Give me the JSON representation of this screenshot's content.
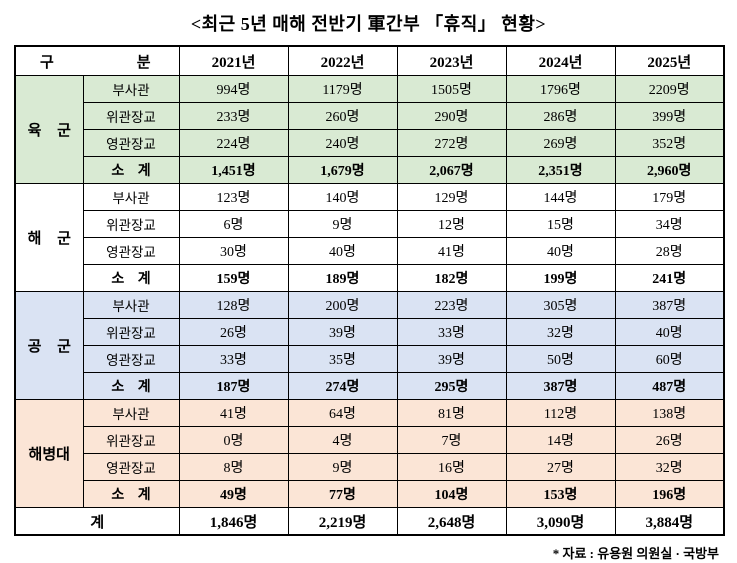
{
  "title": "<최근 5년 매해 전반기 軍간부 「휴직」 현황>",
  "footnote": "* 자료 : 유용원 의원실 · 국방부",
  "chart_data": {
    "type": "table",
    "title": "<최근 5년 매해 전반기 軍간부 「휴직」 현황>",
    "corner": {
      "left": "구",
      "right": "분"
    },
    "years": [
      "2021년",
      "2022년",
      "2023년",
      "2024년",
      "2025년"
    ],
    "groups": [
      {
        "name": "육 군",
        "color": "#d9ead3",
        "rows": [
          {
            "label": "부사관",
            "bold": false,
            "values": [
              "994명",
              "1179명",
              "1505명",
              "1796명",
              "2209명"
            ]
          },
          {
            "label": "위관장교",
            "bold": false,
            "values": [
              "233명",
              "260명",
              "290명",
              "286명",
              "399명"
            ]
          },
          {
            "label": "영관장교",
            "bold": false,
            "values": [
              "224명",
              "240명",
              "272명",
              "269명",
              "352명"
            ]
          },
          {
            "label": "소 계",
            "bold": true,
            "values": [
              "1,451명",
              "1,679명",
              "2,067명",
              "2,351명",
              "2,960명"
            ]
          }
        ]
      },
      {
        "name": "해 군",
        "color": "#ffffff",
        "rows": [
          {
            "label": "부사관",
            "bold": false,
            "values": [
              "123명",
              "140명",
              "129명",
              "144명",
              "179명"
            ]
          },
          {
            "label": "위관장교",
            "bold": false,
            "values": [
              "6명",
              "9명",
              "12명",
              "15명",
              "34명"
            ]
          },
          {
            "label": "영관장교",
            "bold": false,
            "values": [
              "30명",
              "40명",
              "41명",
              "40명",
              "28명"
            ]
          },
          {
            "label": "소 계",
            "bold": true,
            "values": [
              "159명",
              "189명",
              "182명",
              "199명",
              "241명"
            ]
          }
        ]
      },
      {
        "name": "공 군",
        "color": "#dae3f3",
        "rows": [
          {
            "label": "부사관",
            "bold": false,
            "values": [
              "128명",
              "200명",
              "223명",
              "305명",
              "387명"
            ]
          },
          {
            "label": "위관장교",
            "bold": false,
            "values": [
              "26명",
              "39명",
              "33명",
              "32명",
              "40명"
            ]
          },
          {
            "label": "영관장교",
            "bold": false,
            "values": [
              "33명",
              "35명",
              "39명",
              "50명",
              "60명"
            ]
          },
          {
            "label": "소 계",
            "bold": true,
            "values": [
              "187명",
              "274명",
              "295명",
              "387명",
              "487명"
            ]
          }
        ]
      },
      {
        "name": "해병대",
        "color": "#fbe5d6",
        "rows": [
          {
            "label": "부사관",
            "bold": false,
            "values": [
              "41명",
              "64명",
              "81명",
              "112명",
              "138명"
            ]
          },
          {
            "label": "위관장교",
            "bold": false,
            "values": [
              "0명",
              "4명",
              "7명",
              "14명",
              "26명"
            ]
          },
          {
            "label": "영관장교",
            "bold": false,
            "values": [
              "8명",
              "9명",
              "16명",
              "27명",
              "32명"
            ]
          },
          {
            "label": "소 계",
            "bold": true,
            "values": [
              "49명",
              "77명",
              "104명",
              "153명",
              "196명"
            ]
          }
        ]
      }
    ],
    "total": {
      "label": "계",
      "values": [
        "1,846명",
        "2,219명",
        "2,648명",
        "3,090명",
        "3,884명"
      ]
    }
  }
}
